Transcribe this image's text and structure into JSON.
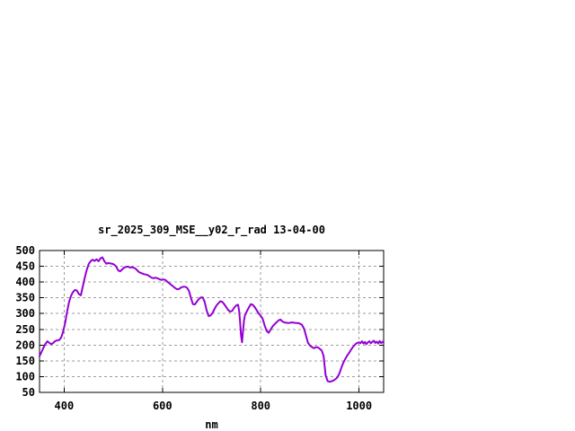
{
  "window": {
    "background": "#ffffff"
  },
  "chart_data": {
    "type": "line",
    "title": "sr_2025_309_MSE__y02_r_rad 13-04-00",
    "xlabel": "nm",
    "ylabel": "",
    "xlim": [
      350,
      1050
    ],
    "ylim": [
      50,
      500
    ],
    "x_ticks": [
      400,
      600,
      800,
      1000
    ],
    "y_ticks": [
      50,
      100,
      150,
      200,
      250,
      300,
      350,
      400,
      450,
      500
    ],
    "grid": true,
    "grid_color": "#9c9c9c",
    "axis_color": "#000000",
    "series": [
      {
        "name": "sr_2025_309_MSE__y02_r_rad",
        "color": "#9400D3",
        "x": [
          350,
          354,
          358,
          362,
          366,
          370,
          374,
          378,
          382,
          386,
          390,
          394,
          398,
          402,
          406,
          410,
          414,
          418,
          422,
          426,
          430,
          434,
          438,
          442,
          446,
          450,
          454,
          458,
          462,
          466,
          470,
          474,
          478,
          482,
          486,
          490,
          494,
          498,
          502,
          506,
          510,
          514,
          518,
          522,
          526,
          530,
          534,
          538,
          542,
          546,
          550,
          554,
          558,
          562,
          566,
          570,
          574,
          578,
          582,
          586,
          590,
          594,
          598,
          602,
          606,
          610,
          614,
          618,
          622,
          626,
          630,
          634,
          638,
          642,
          646,
          650,
          654,
          658,
          662,
          666,
          670,
          674,
          678,
          682,
          686,
          690,
          694,
          698,
          702,
          706,
          710,
          714,
          718,
          722,
          726,
          730,
          734,
          738,
          742,
          746,
          750,
          754,
          756,
          758,
          760,
          762,
          764,
          766,
          768,
          772,
          776,
          780,
          784,
          788,
          792,
          796,
          800,
          804,
          808,
          812,
          816,
          820,
          824,
          828,
          832,
          836,
          840,
          844,
          848,
          852,
          856,
          860,
          864,
          868,
          872,
          876,
          880,
          884,
          888,
          892,
          896,
          900,
          904,
          908,
          912,
          916,
          920,
          924,
          928,
          932,
          936,
          940,
          944,
          948,
          952,
          956,
          960,
          964,
          968,
          972,
          976,
          980,
          984,
          988,
          992,
          996,
          1000,
          1003,
          1006,
          1009,
          1012,
          1015,
          1018,
          1021,
          1024,
          1027,
          1030,
          1033,
          1036,
          1039,
          1042,
          1045,
          1048,
          1050
        ],
        "y": [
          165,
          178,
          192,
          204,
          212,
          207,
          203,
          207,
          213,
          215,
          216,
          224,
          243,
          270,
          305,
          336,
          356,
          368,
          375,
          373,
          362,
          358,
          385,
          413,
          438,
          457,
          466,
          471,
          467,
          472,
          466,
          475,
          478,
          466,
          458,
          460,
          459,
          458,
          455,
          449,
          437,
          434,
          440,
          446,
          448,
          449,
          446,
          447,
          445,
          442,
          435,
          430,
          428,
          425,
          424,
          422,
          418,
          414,
          412,
          414,
          412,
          409,
          407,
          408,
          407,
          401,
          396,
          391,
          386,
          381,
          377,
          378,
          383,
          385,
          385,
          382,
          372,
          350,
          330,
          329,
          338,
          346,
          351,
          351,
          337,
          310,
          292,
          294,
          302,
          315,
          326,
          333,
          339,
          337,
          329,
          320,
          311,
          306,
          309,
          319,
          326,
          328,
          310,
          275,
          230,
          209,
          245,
          278,
          295,
          308,
          320,
          330,
          327,
          320,
          310,
          300,
          293,
          283,
          262,
          245,
          239,
          249,
          259,
          266,
          272,
          278,
          281,
          275,
          272,
          271,
          270,
          271,
          272,
          271,
          270,
          270,
          268,
          264,
          252,
          230,
          208,
          199,
          194,
          190,
          193,
          193,
          188,
          183,
          165,
          105,
          86,
          84,
          85,
          88,
          92,
          98,
          110,
          128,
          144,
          156,
          167,
          176,
          186,
          195,
          202,
          207,
          209,
          206,
          212,
          205,
          210,
          203,
          209,
          212,
          206,
          210,
          214,
          207,
          211,
          205,
          213,
          206,
          211,
          208
        ]
      }
    ]
  }
}
